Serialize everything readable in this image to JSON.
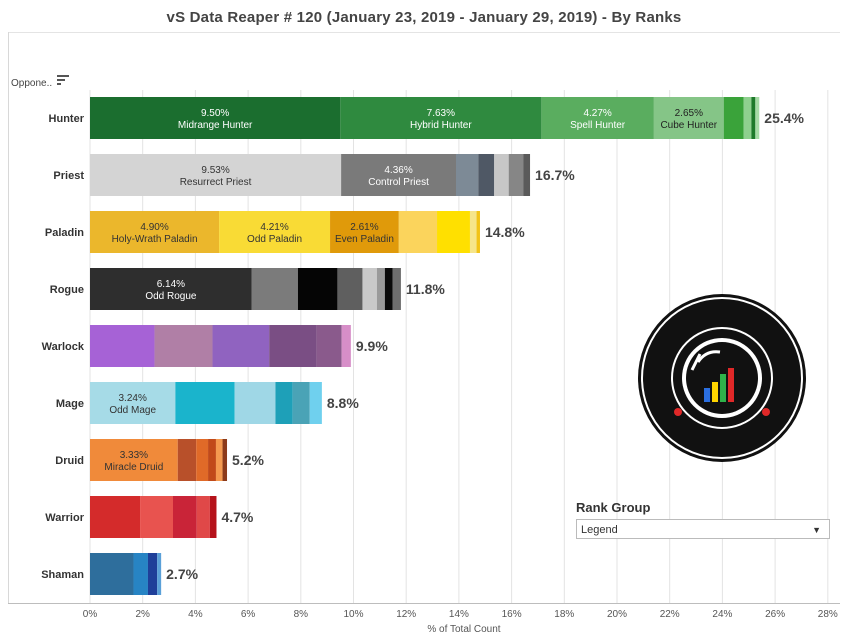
{
  "title": "vS Data Reaper #  120 (January 23, 2019 - January 29, 2019) - By Ranks",
  "header_label": "Oppone..",
  "rank_group": {
    "title": "Rank Group",
    "selected": "Legend"
  },
  "colors": {
    "gridline": "#e3e3e3",
    "axis": "#888888",
    "text": "#333333"
  },
  "chart_data": {
    "type": "bar",
    "orientation": "horizontal",
    "stacked": true,
    "xlabel": "% of Total Count",
    "ylabel": "",
    "xlim": [
      0,
      28
    ],
    "xticks": [
      0,
      2,
      4,
      6,
      8,
      10,
      12,
      14,
      16,
      18,
      20,
      22,
      24,
      26,
      28
    ],
    "xtick_labels": [
      "0%",
      "2%",
      "4%",
      "6%",
      "8%",
      "10%",
      "12%",
      "14%",
      "16%",
      "18%",
      "20%",
      "22%",
      "24%",
      "26%",
      "28%"
    ],
    "grid": true,
    "rows": [
      {
        "category": "Hunter",
        "total_label": "25.4%",
        "segments": [
          {
            "value": 9.5,
            "label": "9.50%",
            "name": "Midrange Hunter",
            "color": "#1b6e2f",
            "text_color": "#ffffff"
          },
          {
            "value": 7.63,
            "label": "7.63%",
            "name": "Hybrid Hunter",
            "color": "#2f8a3f",
            "text_color": "#ffffff"
          },
          {
            "value": 4.27,
            "label": "4.27%",
            "name": "Spell Hunter",
            "color": "#5aad5f",
            "text_color": "#ffffff"
          },
          {
            "value": 2.65,
            "label": "2.65%",
            "name": "Cube Hunter",
            "color": "#85c587",
            "text_color": "#222222"
          },
          {
            "value": 0.75,
            "color": "#3aa33a"
          },
          {
            "value": 0.3,
            "color": "#8ed08e"
          },
          {
            "value": 0.15,
            "color": "#1d7a2a"
          },
          {
            "value": 0.15,
            "color": "#a6dba6"
          }
        ]
      },
      {
        "category": "Priest",
        "total_label": "16.7%",
        "segments": [
          {
            "value": 9.53,
            "label": "9.53%",
            "name": "Resurrect Priest",
            "color": "#d4d4d4",
            "text_color": "#333333"
          },
          {
            "value": 4.36,
            "label": "4.36%",
            "name": "Control Priest",
            "color": "#7a7a7a",
            "text_color": "#ffffff"
          },
          {
            "value": 0.85,
            "color": "#7d8a96"
          },
          {
            "value": 0.6,
            "color": "#4f5865"
          },
          {
            "value": 0.55,
            "color": "#c7c7c7"
          },
          {
            "value": 0.55,
            "color": "#868686"
          },
          {
            "value": 0.26,
            "color": "#5a5a5a"
          }
        ]
      },
      {
        "category": "Paladin",
        "total_label": "14.8%",
        "segments": [
          {
            "value": 4.9,
            "label": "4.90%",
            "name": "Holy-Wrath Paladin",
            "color": "#ebb72c",
            "text_color": "#333333"
          },
          {
            "value": 4.21,
            "label": "4.21%",
            "name": "Odd Paladin",
            "color": "#f9db35",
            "text_color": "#333333"
          },
          {
            "value": 2.61,
            "label": "2.61%",
            "name": "Even Paladin",
            "color": "#e09a0a",
            "text_color": "#333333"
          },
          {
            "value": 1.45,
            "color": "#fbd45c"
          },
          {
            "value": 1.25,
            "color": "#ffe000"
          },
          {
            "value": 0.25,
            "color": "#f6e58a"
          },
          {
            "value": 0.13,
            "color": "#f2c318"
          }
        ]
      },
      {
        "category": "Rogue",
        "total_label": "11.8%",
        "segments": [
          {
            "value": 6.14,
            "label": "6.14%",
            "name": "Odd Rogue",
            "color": "#2e2e2e",
            "text_color": "#ffffff"
          },
          {
            "value": 1.75,
            "color": "#7b7b7b"
          },
          {
            "value": 1.5,
            "color": "#050505"
          },
          {
            "value": 0.95,
            "color": "#5f5f5f"
          },
          {
            "value": 0.55,
            "color": "#c9c9c9"
          },
          {
            "value": 0.3,
            "color": "#9a9a9a"
          },
          {
            "value": 0.3,
            "color": "#0a0a0a"
          },
          {
            "value": 0.31,
            "color": "#6e6e6e"
          }
        ]
      },
      {
        "category": "Warlock",
        "total_label": "9.9%",
        "segments": [
          {
            "value": 2.45,
            "color": "#a662d6"
          },
          {
            "value": 2.2,
            "color": "#b07fa6"
          },
          {
            "value": 2.15,
            "color": "#9063c0"
          },
          {
            "value": 1.8,
            "color": "#7a4e84"
          },
          {
            "value": 0.95,
            "color": "#8a5a8c"
          },
          {
            "value": 0.35,
            "color": "#d78ec8"
          }
        ]
      },
      {
        "category": "Mage",
        "total_label": "8.8%",
        "segments": [
          {
            "value": 3.24,
            "label": "3.24%",
            "name": "Odd Mage",
            "color": "#a6dbe7",
            "text_color": "#333333"
          },
          {
            "value": 2.25,
            "color": "#1ab4cc"
          },
          {
            "value": 1.55,
            "color": "#9fd7e6"
          },
          {
            "value": 0.65,
            "color": "#1ea0b8"
          },
          {
            "value": 0.65,
            "color": "#4aa3b6"
          },
          {
            "value": 0.46,
            "color": "#6fd0ee"
          }
        ]
      },
      {
        "category": "Druid",
        "total_label": "5.2%",
        "segments": [
          {
            "value": 3.33,
            "label": "3.33%",
            "name": "Miracle Druid",
            "color": "#f08a3a",
            "text_color": "#333333"
          },
          {
            "value": 0.7,
            "color": "#b8502a"
          },
          {
            "value": 0.45,
            "color": "#e06a28"
          },
          {
            "value": 0.3,
            "color": "#c14a1a"
          },
          {
            "value": 0.25,
            "color": "#f49a50"
          },
          {
            "value": 0.17,
            "color": "#8c3a1a"
          }
        ]
      },
      {
        "category": "Warrior",
        "total_label": "4.7%",
        "segments": [
          {
            "value": 1.9,
            "color": "#d42b2b"
          },
          {
            "value": 1.25,
            "color": "#e8534f"
          },
          {
            "value": 0.9,
            "color": "#c92438"
          },
          {
            "value": 0.5,
            "color": "#e04848"
          },
          {
            "value": 0.25,
            "color": "#b5121b"
          }
        ]
      },
      {
        "category": "Shaman",
        "total_label": "2.7%",
        "segments": [
          {
            "value": 1.65,
            "color": "#2e6e9c"
          },
          {
            "value": 0.55,
            "color": "#2784c4"
          },
          {
            "value": 0.35,
            "color": "#1f3f99"
          },
          {
            "value": 0.15,
            "color": "#5aa0d8"
          }
        ]
      }
    ]
  }
}
